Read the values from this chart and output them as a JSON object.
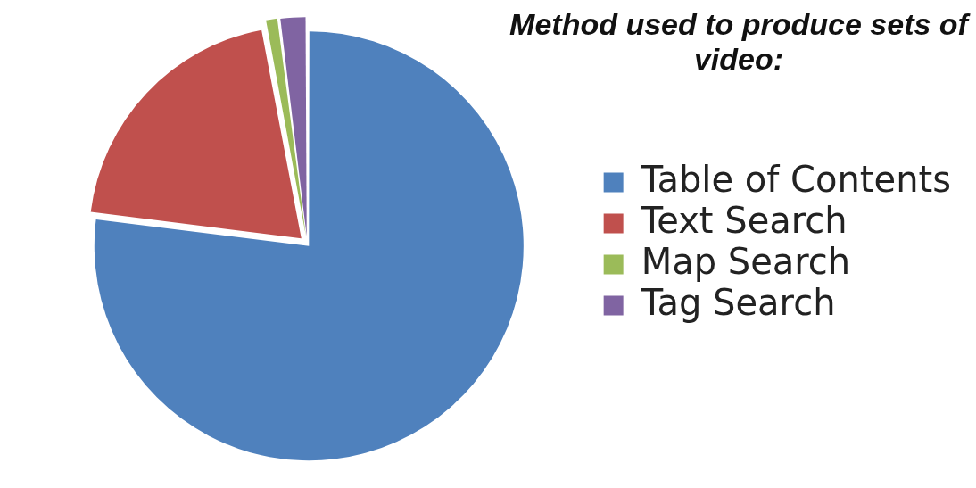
{
  "chart_data": {
    "type": "pie",
    "title": "Method used to produce sets of video:",
    "categories": [
      "Table of Contents",
      "Text Search",
      "Map Search",
      "Tag Search"
    ],
    "values": [
      77,
      20,
      1,
      2
    ],
    "colors": [
      "#4f81bd",
      "#c0504d",
      "#9bbb59",
      "#8064a2"
    ],
    "legend": "right"
  }
}
